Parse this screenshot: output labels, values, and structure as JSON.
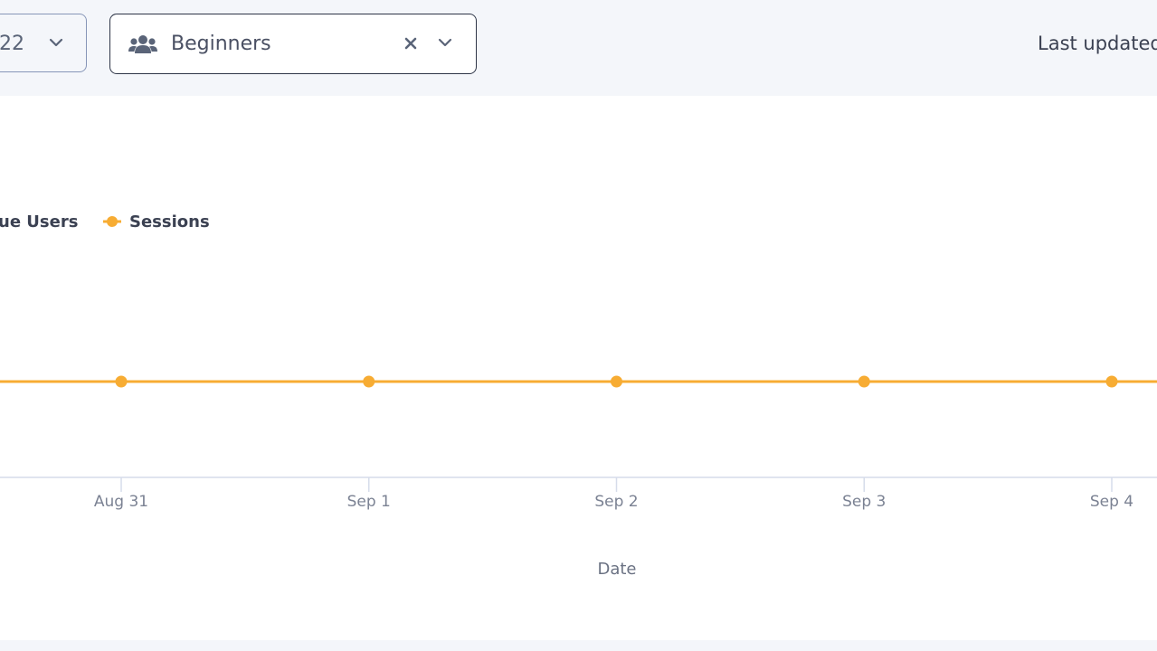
{
  "toolbar": {
    "date_filter": {
      "value": "22",
      "icon": "chevron-down-icon"
    },
    "group_filter": {
      "icon": "users-icon",
      "value": "Beginners",
      "clear_icon": "close-icon",
      "dropdown_icon": "chevron-down-icon"
    },
    "last_updated_label": "Last updated"
  },
  "colors": {
    "sessions": "#f7ac33",
    "axis": "#d6dcea",
    "border_active": "#2e3547",
    "border_inactive": "#8796b8"
  },
  "chart_data": {
    "type": "line",
    "xlabel": "Date",
    "x": [
      "Aug 31",
      "Sep 1",
      "Sep 2",
      "Sep 3",
      "Sep 4"
    ],
    "legend": [
      {
        "name": "Unique Users",
        "shown_text": "ue Users"
      },
      {
        "name": "Sessions",
        "shown_text": "Sessions"
      }
    ],
    "series": [
      {
        "name": "Sessions",
        "color": "#f7ac33",
        "values": [
          1,
          1,
          1,
          1,
          1
        ]
      }
    ],
    "grid": false,
    "legend_position": "top-left"
  }
}
